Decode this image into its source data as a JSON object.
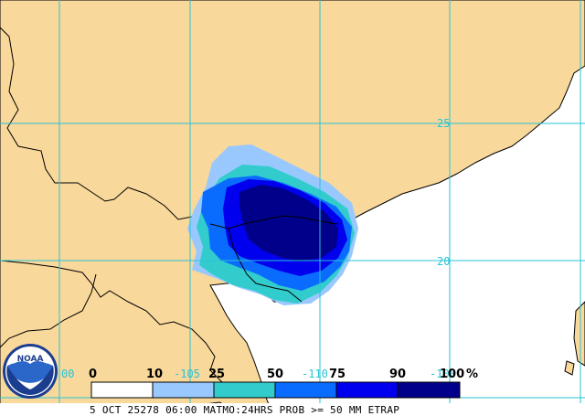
{
  "map": {
    "grid_labels": {
      "lat_25": "25",
      "lat_20": "20",
      "lon_105": "-105",
      "lon_110": "-110",
      "lon_100": "-100",
      "lon_left": "00"
    }
  },
  "legend": {
    "ticks": [
      "0",
      "10",
      "25",
      "50",
      "75",
      "90",
      "100"
    ],
    "unit": "%",
    "colors": [
      "#ffffff",
      "#99c8ff",
      "#33cccc",
      "#0a6cff",
      "#0000ee",
      "#00008b"
    ]
  },
  "footer": {
    "text": "5 OCT 25278 06:00 MATMO:24HRS PROB >= 50 MM ETRAP"
  },
  "logo": {
    "text": "NOAA"
  },
  "colors": {
    "land": "#f9d89b",
    "ocean": "#ffffff",
    "grid": "#27c4d6",
    "border": "#000000"
  }
}
